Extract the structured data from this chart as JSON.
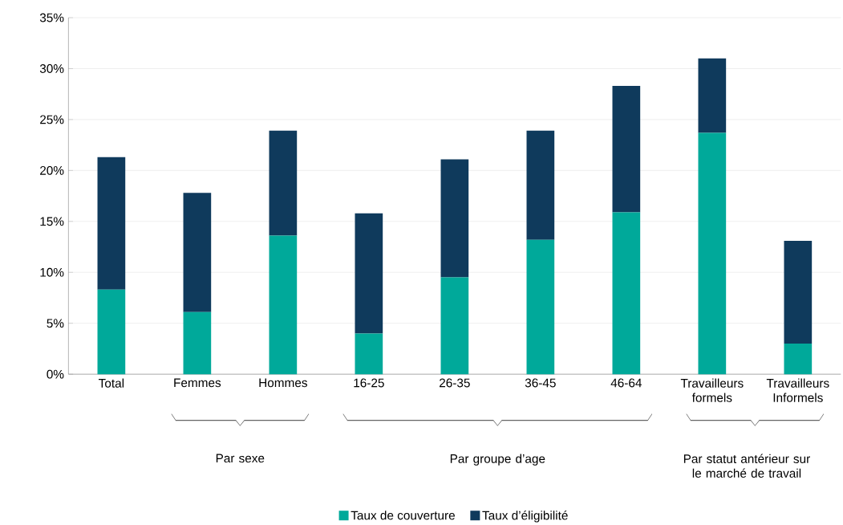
{
  "chart_data": {
    "type": "bar",
    "stacked": true,
    "categories": [
      "Total",
      "Femmes",
      "Hommes",
      "16-25",
      "26-35",
      "36-45",
      "46-64",
      "Travailleurs formels",
      "Travailleurs Informels"
    ],
    "series": [
      {
        "name": "Taux de couverture",
        "color": "#00a99a",
        "values": [
          8.3,
          6.1,
          13.6,
          4.0,
          9.5,
          13.2,
          15.9,
          23.7,
          3.0
        ]
      },
      {
        "name": "Taux d’éligibilité",
        "color": "#0f3a5c",
        "values": [
          13.0,
          11.7,
          10.3,
          11.8,
          11.6,
          10.7,
          12.4,
          7.3,
          10.1
        ]
      }
    ],
    "ylim": [
      0,
      35
    ],
    "yticks": [
      {
        "value": 0,
        "label": "0%"
      },
      {
        "value": 5,
        "label": "5%"
      },
      {
        "value": 10,
        "label": "10%"
      },
      {
        "value": 15,
        "label": "15%"
      },
      {
        "value": 20,
        "label": "20%"
      },
      {
        "value": 25,
        "label": "25%"
      },
      {
        "value": 30,
        "label": "30%"
      },
      {
        "value": 35,
        "label": "35%"
      }
    ],
    "grid": "y",
    "legend": "bottom",
    "annotations": [
      "Par sexe",
      "Par groupe d’age",
      "Par statut antérieur sur le marché de travail"
    ]
  }
}
